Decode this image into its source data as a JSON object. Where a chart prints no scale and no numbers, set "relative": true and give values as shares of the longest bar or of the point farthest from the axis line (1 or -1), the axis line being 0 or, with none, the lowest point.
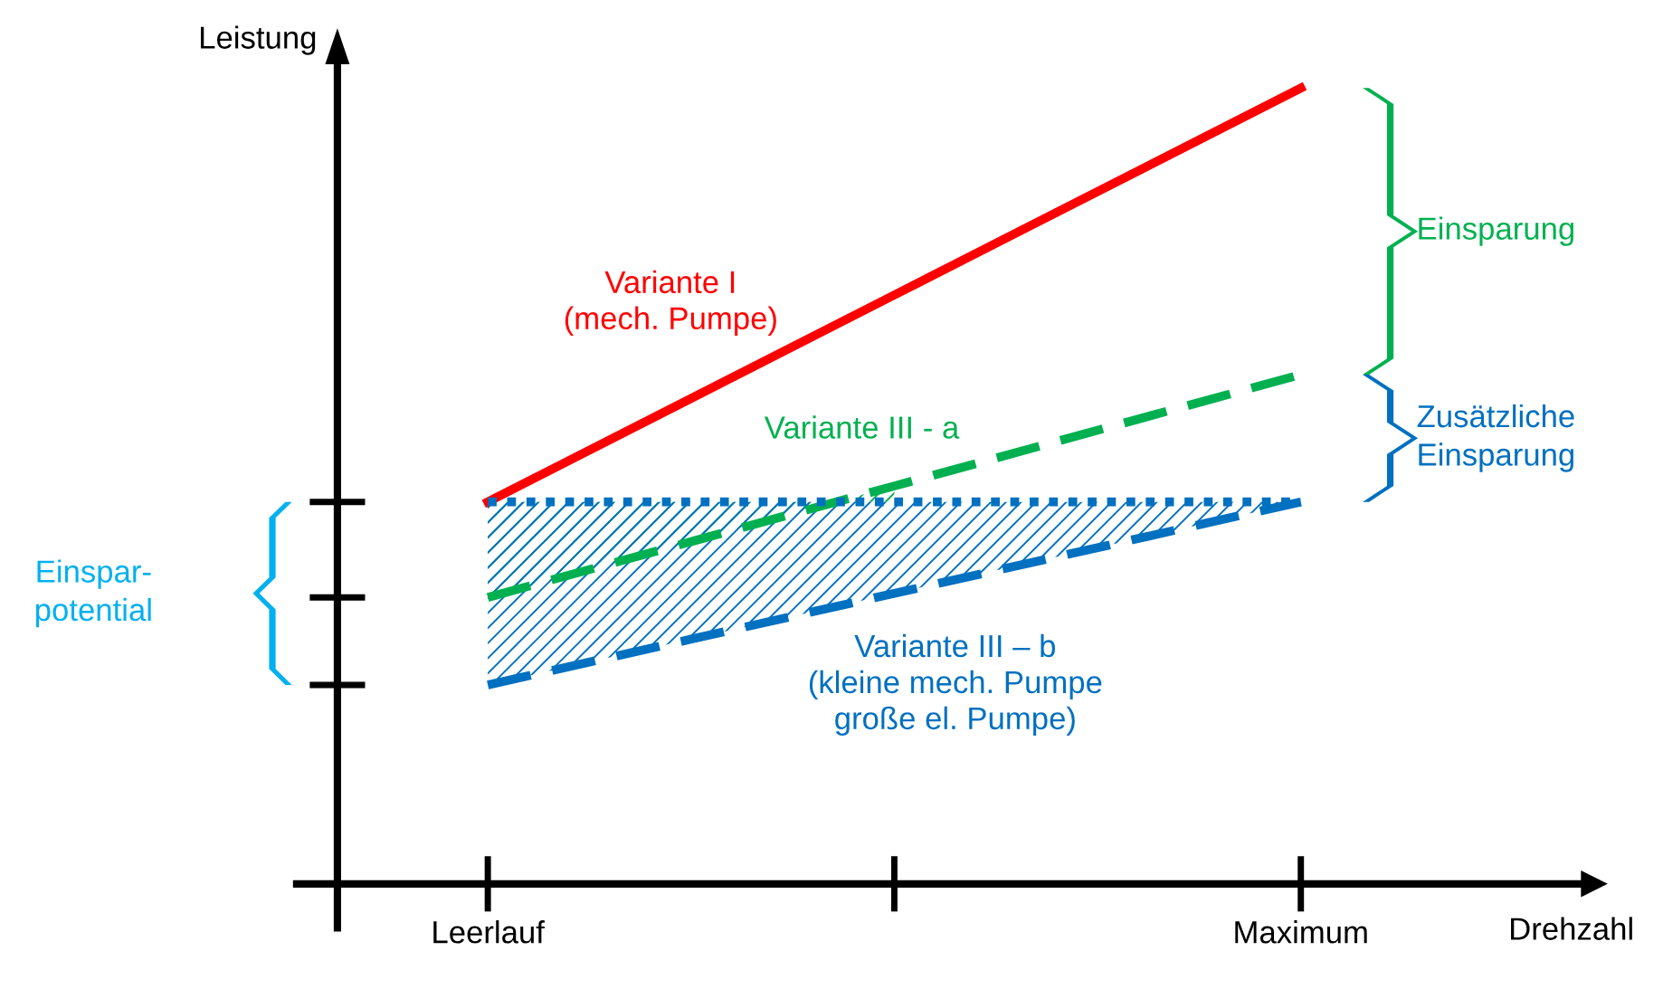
{
  "chart_data": {
    "type": "line",
    "relative": true,
    "xlabel": "Drehzahl",
    "ylabel": "Leistung",
    "categories": [
      "Leerlauf",
      null,
      "Maximum"
    ],
    "grid": false,
    "marker": "none",
    "series": [
      {
        "name": "Variante I\n(mech. Pumpe)",
        "color": "#ff0000",
        "values": [
          0.48,
          0.74,
          1
        ],
        "line_style": "solid"
      },
      {
        "name": "Variante III - a",
        "color": "#00b050",
        "values": [
          0.36,
          0.5,
          0.64
        ],
        "line_style": "dashed"
      },
      {
        "name": "Variante III – b\n(kleine mech. Pumpe\ngroße el. Pumpe)",
        "color": "#0070c0",
        "values": [
          0.25,
          0.365,
          0.48
        ],
        "line_style": "dashed"
      },
      {
        "color": "#0070c0",
        "values": [
          0.48,
          0.48,
          0.48
        ],
        "line_style": "dotted"
      }
    ],
    "annotations": [
      "Einsparung",
      "Zusätzliche\nEinsparung",
      "Einspar-\npotential"
    ]
  }
}
